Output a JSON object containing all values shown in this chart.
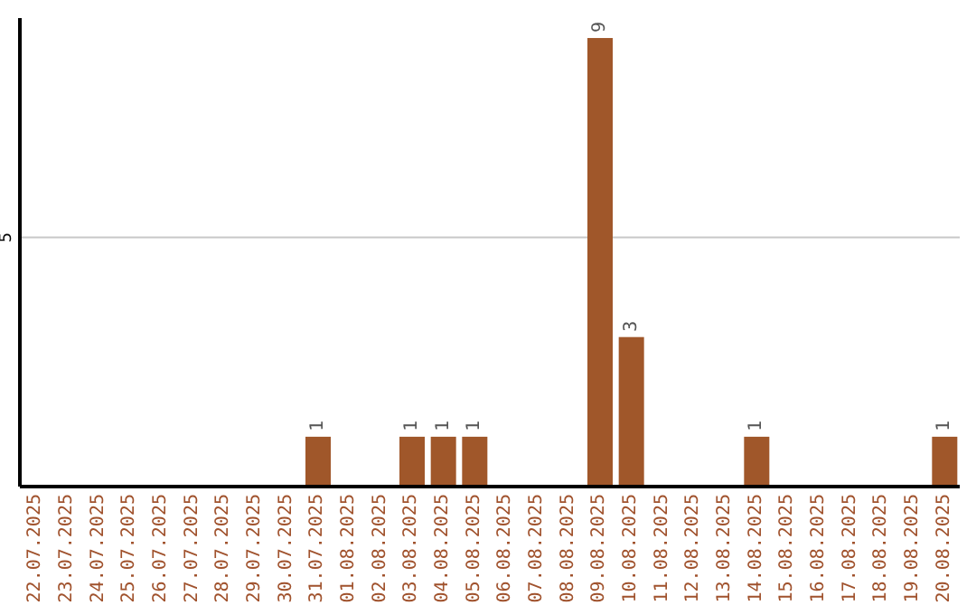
{
  "chart_data": {
    "type": "bar",
    "categories": [
      "22.07.2025",
      "23.07.2025",
      "24.07.2025",
      "25.07.2025",
      "26.07.2025",
      "27.07.2025",
      "28.07.2025",
      "29.07.2025",
      "30.07.2025",
      "31.07.2025",
      "01.08.2025",
      "02.08.2025",
      "03.08.2025",
      "04.08.2025",
      "05.08.2025",
      "06.08.2025",
      "07.08.2025",
      "08.08.2025",
      "09.08.2025",
      "10.08.2025",
      "11.08.2025",
      "12.08.2025",
      "13.08.2025",
      "14.08.2025",
      "15.08.2025",
      "16.08.2025",
      "17.08.2025",
      "18.08.2025",
      "19.08.2025",
      "20.08.2025"
    ],
    "values": [
      0,
      0,
      0,
      0,
      0,
      0,
      0,
      0,
      0,
      1,
      0,
      0,
      1,
      1,
      1,
      0,
      0,
      0,
      9,
      3,
      0,
      0,
      0,
      1,
      0,
      0,
      0,
      0,
      0,
      1
    ],
    "value_labels": [
      null,
      null,
      null,
      null,
      null,
      null,
      null,
      null,
      null,
      "1",
      null,
      null,
      "1",
      "1",
      "1",
      null,
      null,
      null,
      "9",
      "3",
      null,
      null,
      null,
      "1",
      null,
      null,
      null,
      null,
      null,
      "1"
    ],
    "color": "#a0572a",
    "ylim": [
      0,
      9.4
    ],
    "yticks": [
      5
    ],
    "grid": "y"
  }
}
